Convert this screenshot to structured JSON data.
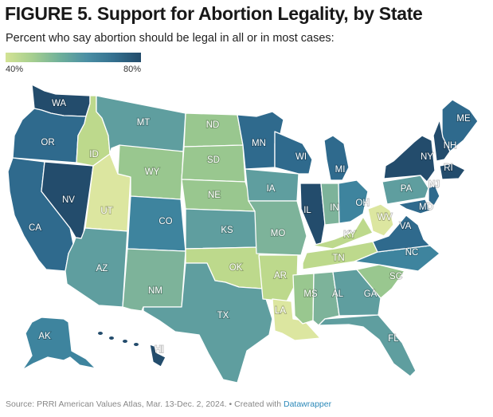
{
  "title": "FIGURE 5. Support for Abortion Legality, by State",
  "subtitle": "Percent who say abortion should be legal in all or in most cases:",
  "legend": {
    "min_label": "40%",
    "max_label": "80%",
    "min_value": 40,
    "max_value": 80
  },
  "footer": {
    "source": "Source: PRRI American Values Atlas, Mar. 13-Dec. 2, 2024. • Created with ",
    "link": "Datawrapper"
  },
  "colors": {
    "c1": "#234c6c",
    "c2": "#2f6a8d",
    "c3": "#3e849e",
    "c4": "#5f9e9f",
    "c5": "#7db39a",
    "c6": "#99c78f",
    "c7": "#bdd98c",
    "c8": "#dce6a0"
  },
  "states": [
    {
      "code": "WA",
      "label": "WA",
      "color": "c1"
    },
    {
      "code": "OR",
      "label": "OR",
      "color": "c2"
    },
    {
      "code": "CA",
      "label": "CA",
      "color": "c2"
    },
    {
      "code": "NV",
      "label": "NV",
      "color": "c1"
    },
    {
      "code": "ID",
      "label": "ID",
      "color": "c7"
    },
    {
      "code": "UT",
      "label": "UT",
      "color": "c8"
    },
    {
      "code": "AZ",
      "label": "AZ",
      "color": "c4"
    },
    {
      "code": "MT",
      "label": "MT",
      "color": "c4"
    },
    {
      "code": "WY",
      "label": "WY",
      "color": "c6"
    },
    {
      "code": "CO",
      "label": "CO",
      "color": "c3"
    },
    {
      "code": "NM",
      "label": "NM",
      "color": "c5"
    },
    {
      "code": "ND",
      "label": "ND",
      "color": "c6"
    },
    {
      "code": "SD",
      "label": "SD",
      "color": "c6"
    },
    {
      "code": "NE",
      "label": "NE",
      "color": "c6"
    },
    {
      "code": "KS",
      "label": "KS",
      "color": "c4"
    },
    {
      "code": "OK",
      "label": "OK",
      "color": "c7"
    },
    {
      "code": "TX",
      "label": "TX",
      "color": "c4"
    },
    {
      "code": "MN",
      "label": "MN",
      "color": "c2"
    },
    {
      "code": "IA",
      "label": "IA",
      "color": "c4"
    },
    {
      "code": "MO",
      "label": "MO",
      "color": "c5"
    },
    {
      "code": "AR",
      "label": "AR",
      "color": "c7"
    },
    {
      "code": "LA",
      "label": "LA",
      "color": "c8"
    },
    {
      "code": "WI",
      "label": "WI",
      "color": "c2"
    },
    {
      "code": "IL",
      "label": "IL",
      "color": "c1"
    },
    {
      "code": "MI",
      "label": "MI",
      "color": "c2"
    },
    {
      "code": "IN",
      "label": "IN",
      "color": "c5"
    },
    {
      "code": "OH",
      "label": "OH",
      "color": "c3"
    },
    {
      "code": "KY",
      "label": "KY",
      "color": "c7"
    },
    {
      "code": "TN",
      "label": "TN",
      "color": "c7"
    },
    {
      "code": "MS",
      "label": "MS",
      "color": "c6"
    },
    {
      "code": "AL",
      "label": "AL",
      "color": "c5"
    },
    {
      "code": "GA",
      "label": "GA",
      "color": "c4"
    },
    {
      "code": "FL",
      "label": "FL",
      "color": "c4"
    },
    {
      "code": "SC",
      "label": "SC",
      "color": "c6"
    },
    {
      "code": "NC",
      "label": "NC",
      "color": "c3"
    },
    {
      "code": "VA",
      "label": "VA",
      "color": "c2"
    },
    {
      "code": "WV",
      "label": "WV",
      "color": "c8"
    },
    {
      "code": "PA",
      "label": "PA",
      "color": "c4"
    },
    {
      "code": "NY",
      "label": "NY",
      "color": "c1"
    },
    {
      "code": "NJ",
      "label": "NJ",
      "color": "c2"
    },
    {
      "code": "MD",
      "label": "MD",
      "color": "c2"
    },
    {
      "code": "ME",
      "label": "ME",
      "color": "c2"
    },
    {
      "code": "NH",
      "label": "NH",
      "color": "c1"
    },
    {
      "code": "RI",
      "label": "RI",
      "color": "c1"
    },
    {
      "code": "AK",
      "label": "AK",
      "color": "c3"
    },
    {
      "code": "HI",
      "label": "HI",
      "color": "c1"
    }
  ]
}
